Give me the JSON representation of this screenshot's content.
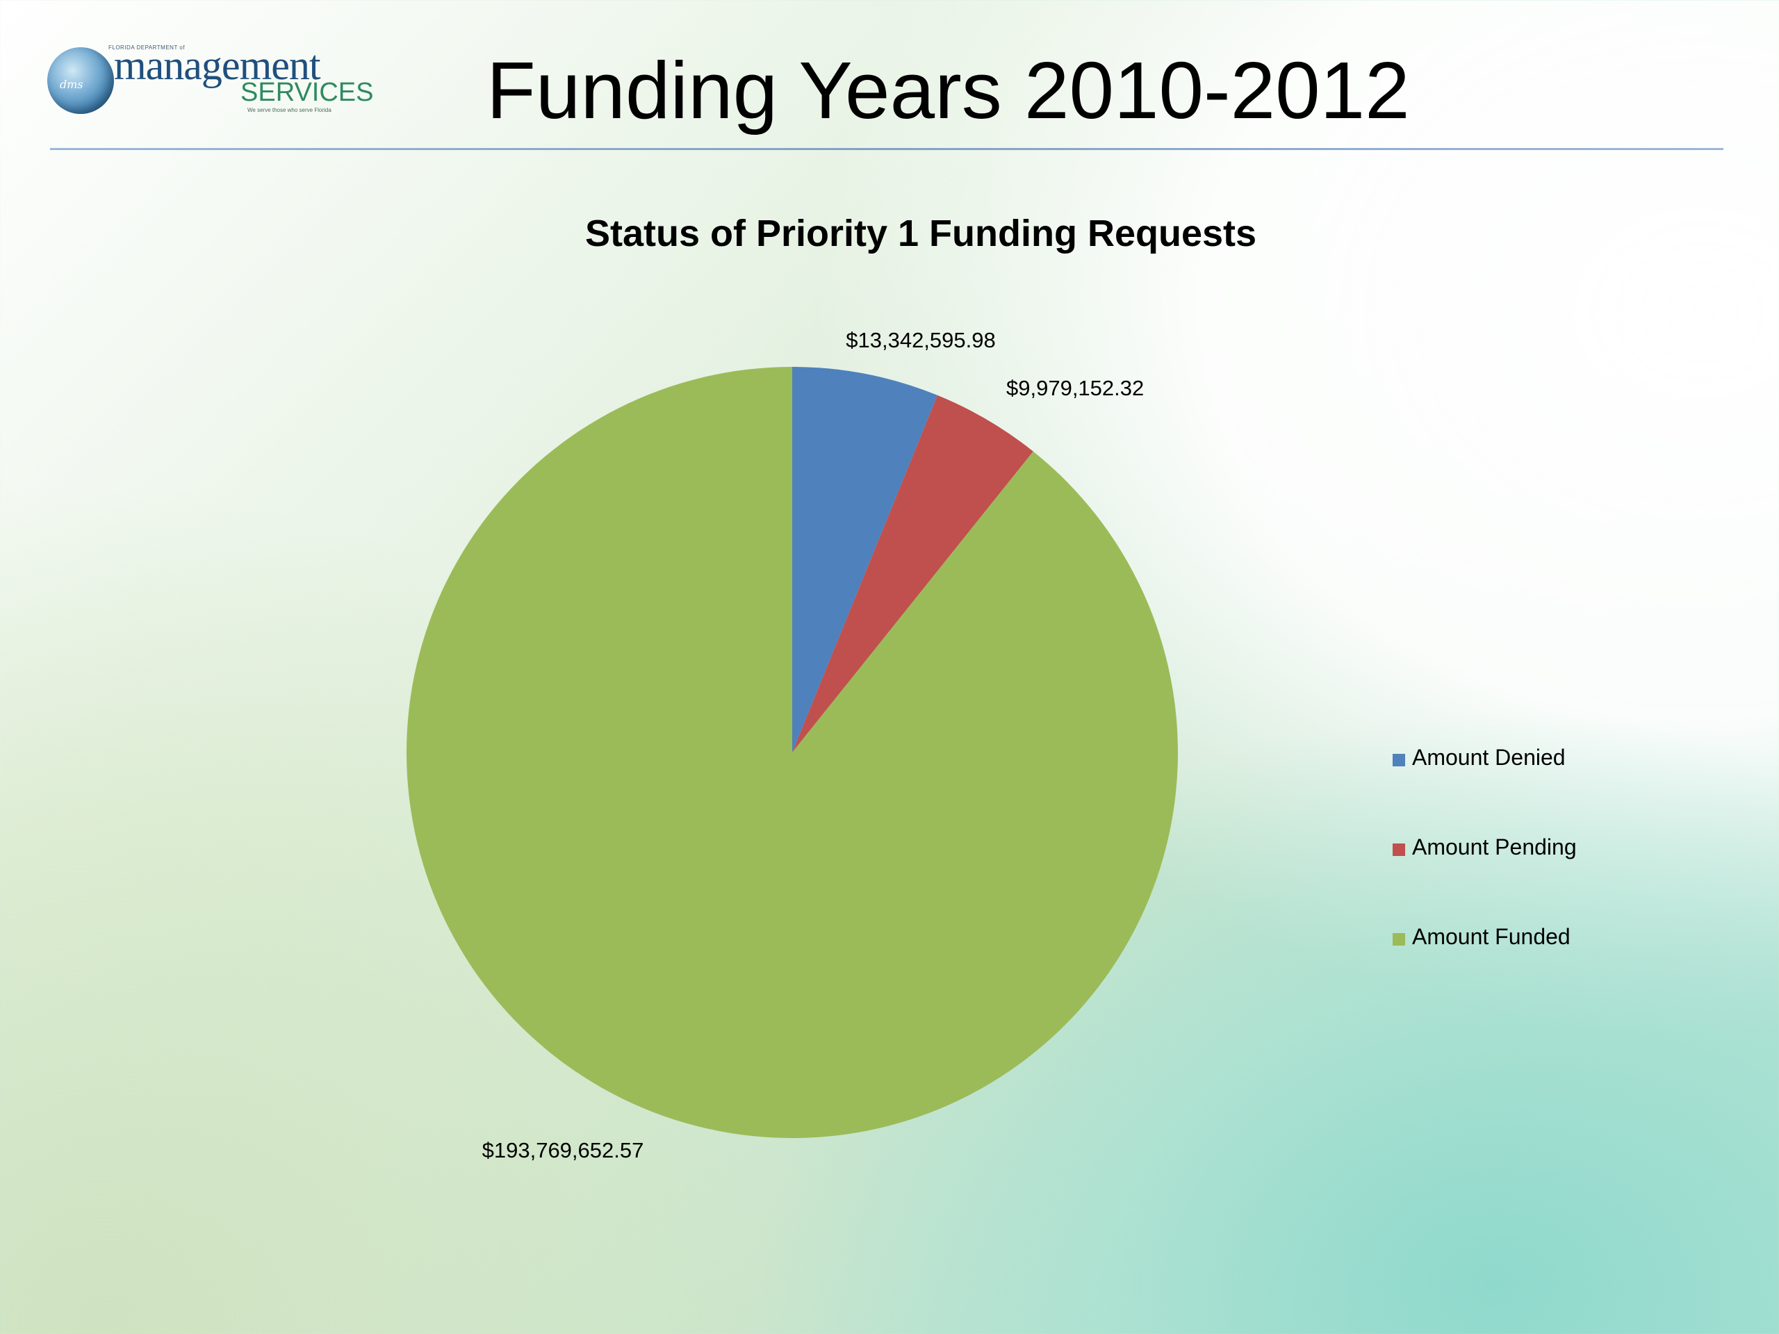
{
  "logo": {
    "dept_text": "FLORIDA DEPARTMENT of",
    "name_main": "management",
    "name_sub": "SERVICES",
    "tagline": "We serve those who serve Florida",
    "badge": "dms"
  },
  "slide": {
    "title": "Funding Years 2010-2012"
  },
  "chart_data": {
    "type": "pie",
    "title": "Status of Priority 1 Funding Requests",
    "start_angle_deg": 0,
    "direction": "clockwise",
    "legend_position": "right",
    "slices": [
      {
        "name": "Amount Denied",
        "value": 13342595.98,
        "label": "$13,342,595.98",
        "color": "#4f81bd"
      },
      {
        "name": "Amount Pending",
        "value": 9979152.32,
        "label": "$9,979,152.32",
        "color": "#c0504d"
      },
      {
        "name": "Amount Funded",
        "value": 193769652.57,
        "label": "$193,769,652.57",
        "color": "#9bbb59"
      }
    ]
  }
}
